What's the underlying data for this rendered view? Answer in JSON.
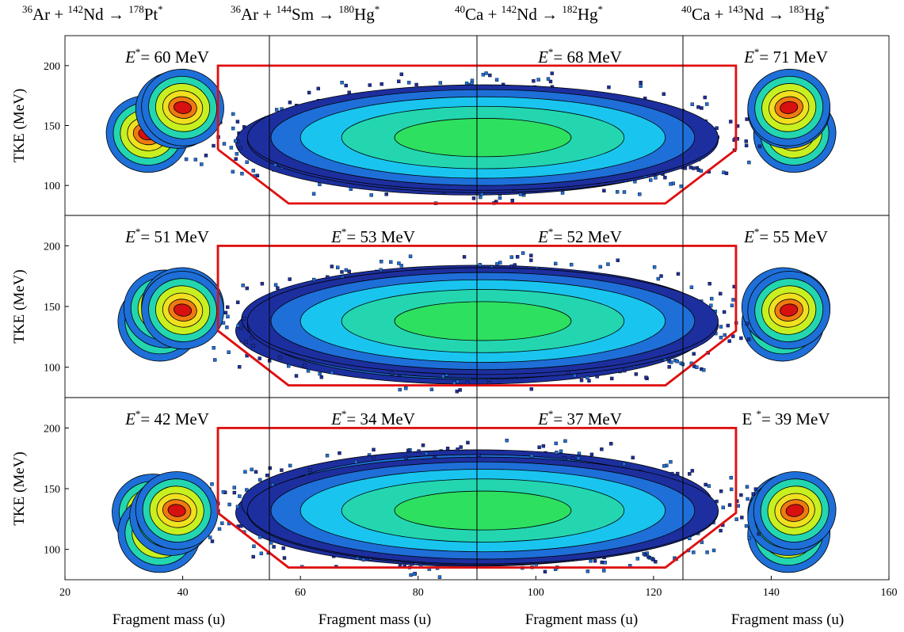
{
  "figure": {
    "column_titles": [
      {
        "proj_A": "36",
        "proj": "Ar",
        "targ_A": "142",
        "targ": "Nd",
        "cn_A": "178",
        "cn": "Pt"
      },
      {
        "proj_A": "36",
        "proj": "Ar",
        "targ_A": "144",
        "targ": "Sm",
        "cn_A": "180",
        "cn": "Hg"
      },
      {
        "proj_A": "40",
        "proj": "Ca",
        "targ_A": "142",
        "targ": "Nd",
        "cn_A": "182",
        "cn": "Hg"
      },
      {
        "proj_A": "40",
        "proj": "Ca",
        "targ_A": "143",
        "targ": "Nd",
        "cn_A": "183",
        "cn": "Hg"
      }
    ],
    "ylabel": "TKE (MeV)",
    "xlabel": "Fragment mass (u)",
    "x_ticks": [
      20,
      40,
      60,
      80,
      100,
      120,
      140,
      160
    ],
    "y_ticks": [
      100,
      150,
      200
    ]
  },
  "chart_data": {
    "type": "heatmap",
    "xlim": [
      20,
      160
    ],
    "ylim": [
      75,
      225
    ],
    "xlabel": "Fragment mass (u)",
    "ylabel": "TKE (MeV)",
    "colormap": [
      "#1d2f9e",
      "#1e6fd8",
      "#19c5ef",
      "#23d6b0",
      "#2ee060",
      "#c8f020",
      "#f0e020",
      "#f07a10",
      "#d81010"
    ],
    "gate_polygon": {
      "mass": [
        46,
        58,
        122,
        134,
        134,
        46,
        46
      ],
      "tke": [
        130,
        85,
        85,
        130,
        200,
        200,
        130
      ],
      "color": "#e01010"
    },
    "panels": [
      {
        "row": 0,
        "col": 0,
        "label": "= 60 MeV",
        "italic_E": true,
        "quasi_peaks": [
          {
            "m": 34,
            "tke": 143
          },
          {
            "m": 144,
            "tke": 143
          }
        ],
        "fission_center": {
          "m": 89,
          "tke": 136
        }
      },
      {
        "row": 0,
        "col": 1,
        "empty": true
      },
      {
        "row": 0,
        "col": 2,
        "label": "= 68 MeV",
        "italic_E": true,
        "quasi_peaks": [
          {
            "m": 39,
            "tke": 163
          },
          {
            "m": 143,
            "tke": 163
          }
        ],
        "fission_center": {
          "m": 91,
          "tke": 138
        }
      },
      {
        "row": 0,
        "col": 3,
        "label": "= 71 MeV",
        "italic_E": true,
        "quasi_peaks": [
          {
            "m": 40,
            "tke": 165
          },
          {
            "m": 143,
            "tke": 165
          }
        ],
        "fission_center": {
          "m": 91,
          "tke": 140
        }
      },
      {
        "row": 1,
        "col": 0,
        "label": "= 51 MeV",
        "italic_E": true,
        "quasi_peaks": [
          {
            "m": 36,
            "tke": 137
          },
          {
            "m": 142,
            "tke": 137
          }
        ],
        "fission_center": {
          "m": 89,
          "tke": 130
        }
      },
      {
        "row": 1,
        "col": 1,
        "label": "= 53 MeV",
        "italic_E": true,
        "quasi_peaks": [
          {
            "m": 37,
            "tke": 148
          },
          {
            "m": 143,
            "tke": 148
          }
        ],
        "fission_center": {
          "m": 90,
          "tke": 140
        }
      },
      {
        "row": 1,
        "col": 2,
        "label": "= 52 MeV",
        "italic_E": true,
        "quasi_peaks": [
          {
            "m": 40,
            "tke": 150
          },
          {
            "m": 142,
            "tke": 150
          }
        ],
        "fission_center": {
          "m": 91,
          "tke": 135
        }
      },
      {
        "row": 1,
        "col": 3,
        "label": "= 55 MeV",
        "italic_E": true,
        "quasi_peaks": [
          {
            "m": 40,
            "tke": 147
          },
          {
            "m": 143,
            "tke": 147
          }
        ],
        "fission_center": {
          "m": 91,
          "tke": 138
        }
      },
      {
        "row": 2,
        "col": 0,
        "label": "= 42 MeV",
        "italic_E": true,
        "quasi_peaks": [
          {
            "m": 35,
            "tke": 130
          },
          {
            "m": 143,
            "tke": 130
          }
        ],
        "fission_center": {
          "m": 89,
          "tke": 130
        }
      },
      {
        "row": 2,
        "col": 1,
        "label": "= 34 MeV",
        "italic_E": true,
        "quasi_peaks": [
          {
            "m": 36,
            "tke": 113
          },
          {
            "m": 143,
            "tke": 113
          }
        ],
        "fission_center": {
          "m": 90,
          "tke": 138
        }
      },
      {
        "row": 2,
        "col": 2,
        "label": "= 37 MeV",
        "italic_E": true,
        "quasi_peaks": [
          {
            "m": 38,
            "tke": 127
          },
          {
            "m": 143,
            "tke": 127
          }
        ],
        "fission_center": {
          "m": 91,
          "tke": 131
        }
      },
      {
        "row": 2,
        "col": 3,
        "label": "E = 39 MeV",
        "italic_E": false,
        "quasi_peaks": [
          {
            "m": 39,
            "tke": 132
          },
          {
            "m": 144,
            "tke": 132
          }
        ],
        "fission_center": {
          "m": 91,
          "tke": 132
        }
      }
    ]
  }
}
